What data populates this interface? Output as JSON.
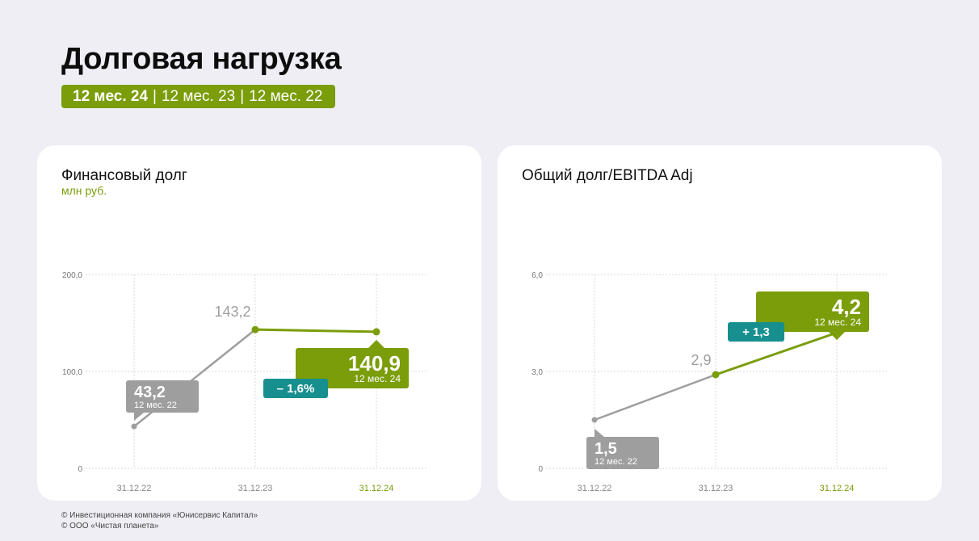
{
  "header": {
    "title": "Долговая нагрузка",
    "periods": [
      {
        "label": "12 мес. 24",
        "active": true
      },
      {
        "label": "12 мес. 23",
        "active": false
      },
      {
        "label": "12 мес. 22",
        "active": false
      }
    ],
    "separator": "|"
  },
  "colors": {
    "accent": "#7b9d0a",
    "teal": "#178f8f",
    "gray_line": "#9e9e9e",
    "gray_label": "#9e9e9e",
    "background": "#efeef5",
    "card": "#ffffff"
  },
  "cards": [
    {
      "title": "Финансовый долг",
      "unit": "млн руб."
    },
    {
      "title": "Общий долг/EBITDA Adj",
      "unit": ""
    }
  ],
  "chart_data": [
    {
      "type": "line",
      "title": "Финансовый долг",
      "ylabel": "млн руб.",
      "categories": [
        "31.12.22",
        "31.12.23",
        "31.12.24"
      ],
      "values": [
        43.2,
        143.2,
        140.9
      ],
      "ylim": [
        0,
        200
      ],
      "yticks": [
        0,
        100,
        200
      ],
      "ytick_labels": [
        "0",
        "100,0",
        "200,0"
      ],
      "grid": true,
      "highlight_index": 2,
      "labels": [
        {
          "value": "43,2",
          "sub": "12 мес. 22",
          "style": "gray-box"
        },
        {
          "value": "143,2",
          "sub": "",
          "style": "plain"
        },
        {
          "value": "140,9",
          "sub": "12 мес. 24",
          "style": "green-box"
        }
      ],
      "change_badge": "– 1,6%"
    },
    {
      "type": "line",
      "title": "Общий долг/EBITDA Adj",
      "ylabel": "",
      "categories": [
        "31.12.22",
        "31.12.23",
        "31.12.24"
      ],
      "values": [
        1.5,
        2.9,
        4.2
      ],
      "ylim": [
        0,
        6
      ],
      "yticks": [
        0,
        3,
        6
      ],
      "ytick_labels": [
        "0",
        "3,0",
        "6,0"
      ],
      "grid": true,
      "highlight_index": 2,
      "labels": [
        {
          "value": "1,5",
          "sub": "12 мес. 22",
          "style": "gray-box"
        },
        {
          "value": "2,9",
          "sub": "",
          "style": "plain"
        },
        {
          "value": "4,2",
          "sub": "12 мес. 24",
          "style": "green-box"
        }
      ],
      "change_badge": "+ 1,3"
    }
  ],
  "footer": {
    "line1": "© Инвестиционная компания «Юнисервис Капитал»",
    "line2": "© ООО «Чистая планета»"
  }
}
